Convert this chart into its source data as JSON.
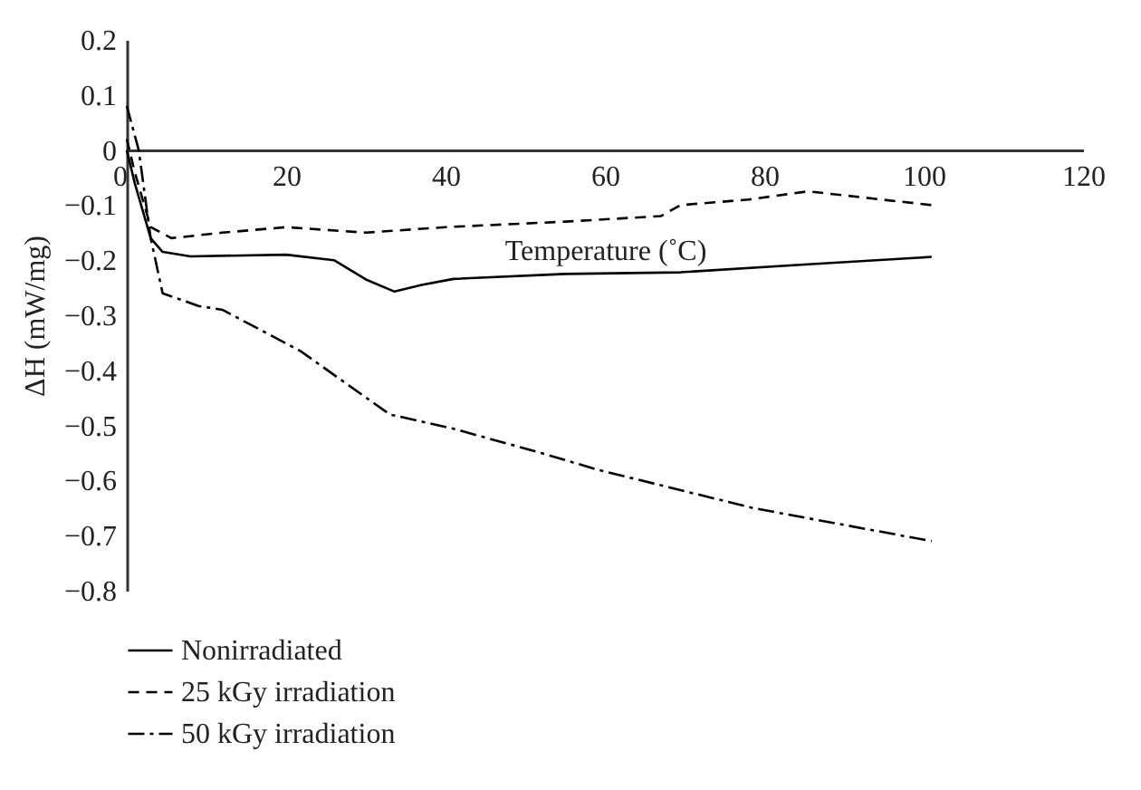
{
  "chart_data": {
    "type": "line",
    "xlabel": "Temperature (˚C)",
    "ylabel": "ΔH (mW/mg)",
    "xlim": [
      0,
      120
    ],
    "xticks": [
      0,
      20,
      40,
      60,
      80,
      100,
      120
    ],
    "ylim": [
      -0.8,
      0.2
    ],
    "yticks": [
      -0.8,
      -0.7,
      -0.6,
      -0.5,
      -0.4,
      -0.3,
      -0.2,
      -0.1,
      0,
      0.1,
      0.2
    ],
    "grid": false,
    "legend": "bottom",
    "marker": "none",
    "series": [
      {
        "name": "Nonirradiated",
        "color": "#000000",
        "line_style": "solid",
        "x": [
          0,
          1,
          3,
          4.5,
          8,
          20,
          26,
          30,
          33.6,
          37,
          41,
          55,
          69.5,
          85,
          101
        ],
        "values": [
          0,
          -0.06,
          -0.16,
          -0.185,
          -0.193,
          -0.19,
          -0.2,
          -0.235,
          -0.257,
          -0.245,
          -0.234,
          -0.225,
          -0.222,
          -0.208,
          -0.194
        ]
      },
      {
        "name": "25 kGy irradiation",
        "color": "#000000",
        "line_style": "dashed",
        "x": [
          0,
          1,
          3,
          5.6,
          12,
          20,
          30,
          40,
          55,
          67,
          69.5,
          78,
          85.5,
          101
        ],
        "values": [
          0.02,
          -0.04,
          -0.14,
          -0.16,
          -0.15,
          -0.14,
          -0.15,
          -0.14,
          -0.13,
          -0.12,
          -0.1,
          -0.09,
          -0.075,
          -0.1
        ]
      },
      {
        "name": "50 kGy irradiation",
        "color": "#000000",
        "line_style": "dashdot",
        "x": [
          0,
          1.5,
          3,
          4.5,
          9,
          12,
          21.8,
          33,
          41,
          52,
          59,
          78.6,
          101
        ],
        "values": [
          0.08,
          0,
          -0.16,
          -0.26,
          -0.283,
          -0.29,
          -0.365,
          -0.48,
          -0.506,
          -0.55,
          -0.58,
          -0.65,
          -0.71
        ]
      }
    ]
  }
}
